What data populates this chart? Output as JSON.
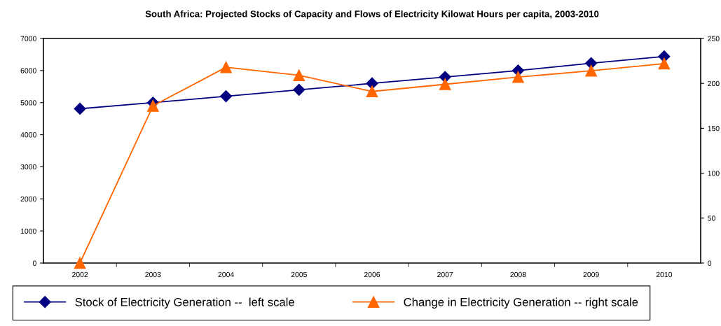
{
  "chart_data": {
    "type": "line",
    "title": "South Africa: Projected Stocks of Capacity and Flows of Electricity Kilowat Hours per capita, 2003-2010",
    "categories": [
      "2002",
      "2003",
      "2004",
      "2005",
      "2006",
      "2007",
      "2008",
      "2009",
      "2010"
    ],
    "series": [
      {
        "name": "Stock of Electricity Generation --  left scale",
        "color": "#000080",
        "marker": "diamond",
        "values": [
          4810,
          5000,
          5200,
          5400,
          5600,
          5800,
          6000,
          6230,
          6440
        ]
      },
      {
        "name": "Change in Electricity Generation -- right scale",
        "color": "#ff6600",
        "marker": "triangle",
        "axis": "y2",
        "values": [
          0,
          175,
          218,
          209,
          191,
          199,
          207,
          214,
          222
        ]
      }
    ],
    "ylim": [
      0,
      7000
    ],
    "yticks": [
      0,
      1000,
      2000,
      3000,
      4000,
      5000,
      6000,
      7000
    ],
    "y2lim": [
      0,
      250
    ],
    "y2ticks": [
      0,
      50,
      100,
      150,
      200,
      250
    ],
    "grid": false,
    "legend": "bottom",
    "line_style": "solid"
  }
}
